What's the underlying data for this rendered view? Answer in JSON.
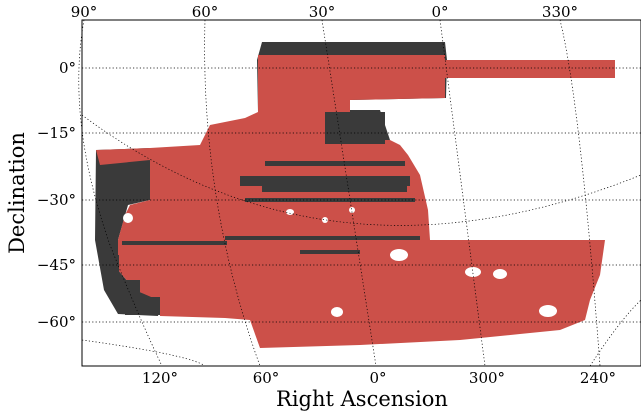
{
  "chart_data": {
    "type": "map",
    "projection": "sky (Right Ascension vs Declination)",
    "xlabel": "Right Ascension",
    "ylabel": "Declination",
    "y_ticks": [
      {
        "value": 0,
        "label": "0°"
      },
      {
        "value": -15,
        "label": "−15°"
      },
      {
        "value": -30,
        "label": "−30°"
      },
      {
        "value": -45,
        "label": "−45°"
      },
      {
        "value": -60,
        "label": "−60°"
      }
    ],
    "top_ticks": [
      {
        "value": 90,
        "label": "90°"
      },
      {
        "value": 60,
        "label": "60°"
      },
      {
        "value": 30,
        "label": "30°"
      },
      {
        "value": 0,
        "label": "0°"
      },
      {
        "value": 330,
        "label": "330°"
      }
    ],
    "bottom_ticks": [
      {
        "value": 120,
        "label": "120°"
      },
      {
        "value": 60,
        "label": "60°"
      },
      {
        "value": 0,
        "label": "0°"
      },
      {
        "value": 300,
        "label": "300°"
      },
      {
        "value": 240,
        "label": "240°"
      }
    ],
    "series": [
      {
        "color": "#cc5049"
      },
      {
        "color": "#3a3a3a"
      }
    ],
    "grid": true
  }
}
